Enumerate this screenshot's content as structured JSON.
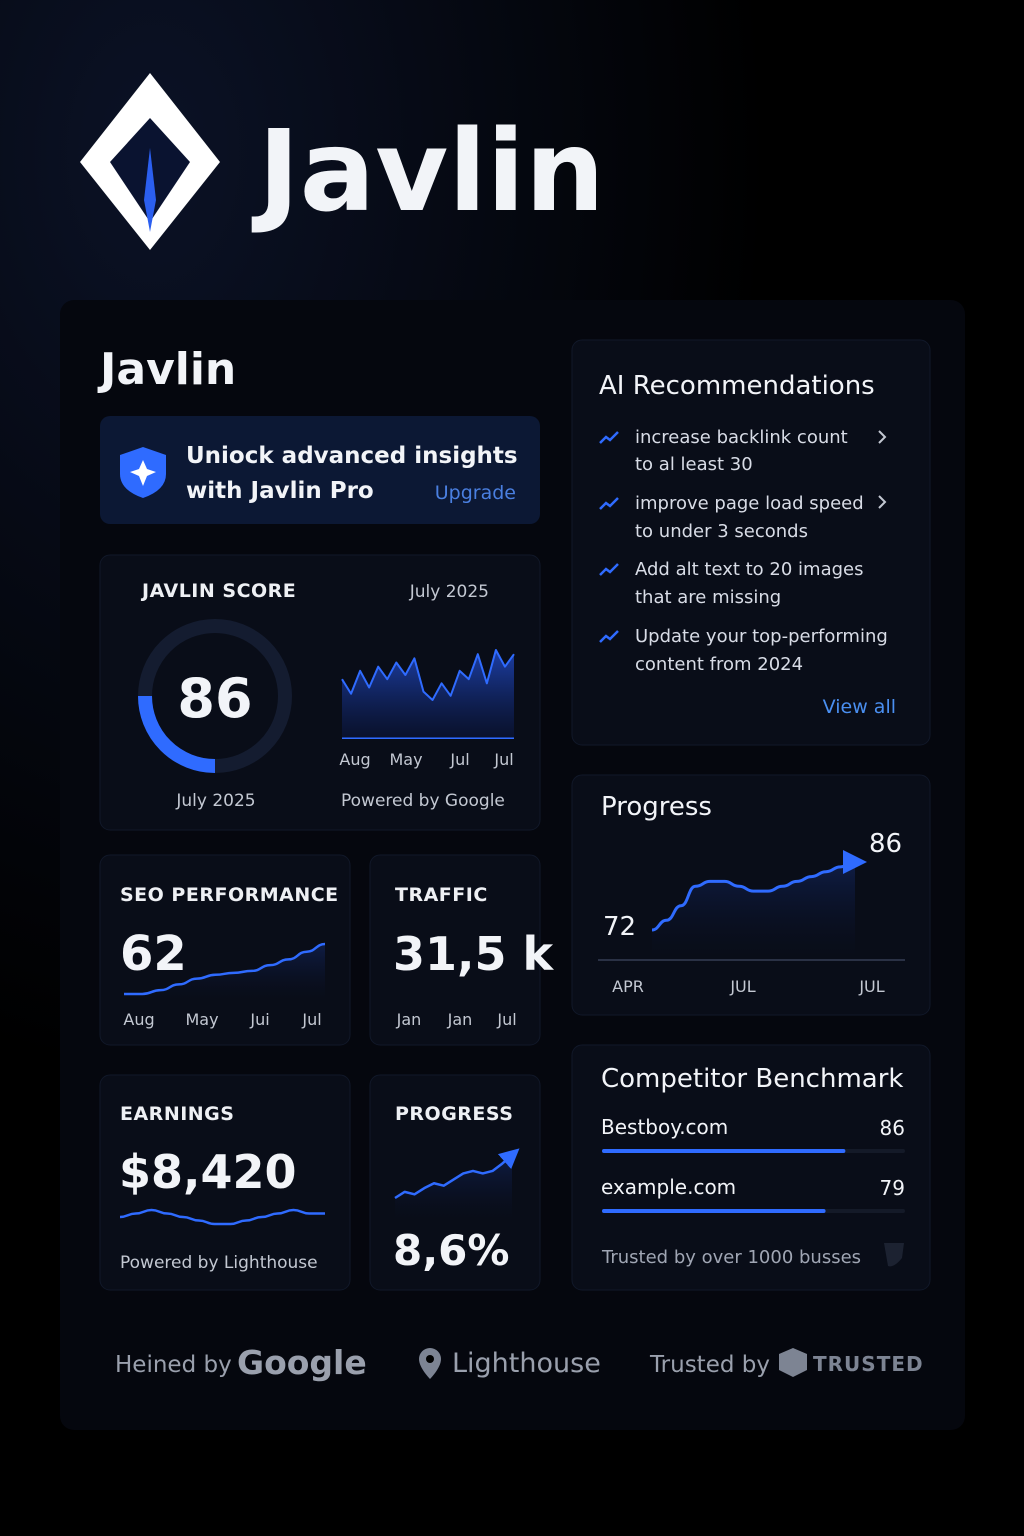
{
  "brand": "Javlin",
  "panel_title": "Javlin",
  "promo": {
    "line1": "Uniock advanced insights",
    "line2": "with Javlin Pro",
    "action": "Upgrade"
  },
  "score_card": {
    "label": "JAVLIN SCORE",
    "score": 86,
    "score_date": "July 2025",
    "chart_date": "July 2025",
    "trend": [
      62,
      55,
      66,
      58,
      68,
      62,
      70,
      64,
      72,
      56,
      52,
      60,
      54,
      66,
      62,
      74,
      60,
      76,
      68,
      74
    ],
    "x_labels": [
      "Aug",
      "May",
      "Jul",
      "Jul"
    ],
    "footnote": "Powered by Google"
  },
  "seo": {
    "label": "SEO PERFORMANCE",
    "value": 62,
    "trend": [
      40,
      40,
      42,
      45,
      48,
      50,
      51,
      52,
      55,
      58,
      62,
      66
    ],
    "x_labels": [
      "Aug",
      "May",
      "Jui",
      "Jul"
    ]
  },
  "traffic": {
    "label": "TRAFFIC",
    "value": 31500,
    "value_label": "31,5 k",
    "x_labels": [
      "Jan",
      "Jan",
      "Jul"
    ]
  },
  "earnings": {
    "label": "EARNINGS",
    "value": 8420,
    "value_label": "$8,420",
    "trend": [
      50,
      51,
      52,
      51,
      50,
      49,
      48,
      48,
      49,
      50,
      51,
      52,
      51,
      51
    ],
    "footnote": "Powered by Lighthouse"
  },
  "progress_small": {
    "label": "PROGRESS",
    "value": 8.6,
    "value_label": "8,6%",
    "trend": [
      40,
      45,
      43,
      48,
      52,
      50,
      55,
      60,
      62,
      60,
      62,
      68,
      75
    ]
  },
  "recommendations": {
    "title": "AI Recommendations",
    "items": [
      [
        "increase backlink count",
        "to al least 30"
      ],
      [
        "improve page load speed",
        "to under 3 seconds"
      ],
      [
        "Add alt text to 20 images",
        "that are missing"
      ],
      [
        "Update your top-performing",
        "content from 2024"
      ]
    ],
    "action": "View all"
  },
  "progress": {
    "title": "Progress",
    "values": [
      72,
      74,
      77,
      81,
      82,
      82,
      81,
      80,
      80,
      81,
      82,
      83,
      84,
      85,
      86
    ],
    "x_labels": [
      "APR",
      "JUL",
      "JUL"
    ]
  },
  "competitors": {
    "title": "Competitor Benchmark",
    "items": [
      {
        "name": "Bestboy.com",
        "value": 86
      },
      {
        "name": "example.com",
        "value": 79
      }
    ],
    "footnote": "Trusted by over 1000 busses"
  },
  "footer": {
    "prefix1": "Heined by",
    "brand1": "Google",
    "brand2": "Lighthouse",
    "prefix3": "Trusted by",
    "brand3": "TRUSTED"
  }
}
